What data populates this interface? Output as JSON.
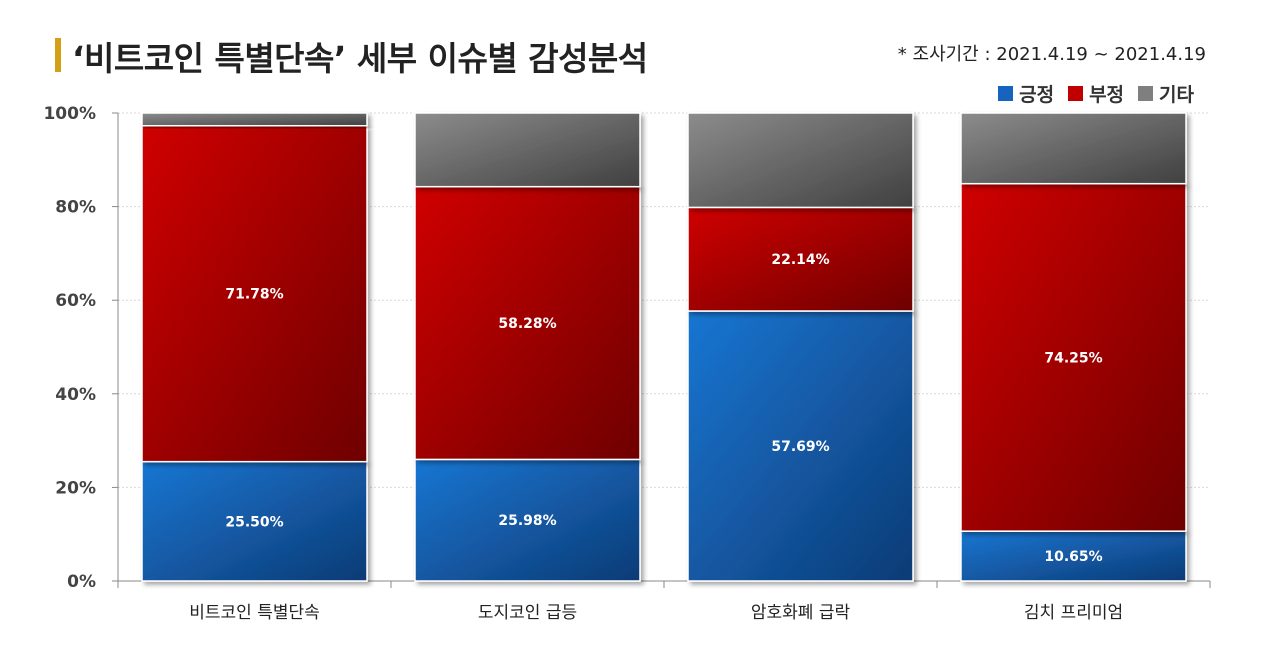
{
  "title": "‘비트코인 특별단속’ 세부 이슈별 감성분석",
  "note": "* 조사기간 : 2021.4.19 ~ 2021.4.19",
  "chart_data": {
    "type": "bar",
    "stacked": true,
    "categories": [
      "비트코인 특별단속",
      "도지코인 급등",
      "암호화폐 급락",
      "김치 프리미엄"
    ],
    "series": [
      {
        "name": "긍정",
        "color": "#1565C0",
        "values": [
          25.5,
          25.98,
          57.69,
          10.65
        ],
        "labels": [
          "25.50%",
          "25.98%",
          "57.69%",
          "10.65%"
        ]
      },
      {
        "name": "부정",
        "color": "#C00000",
        "values": [
          71.78,
          58.28,
          22.14,
          74.25
        ],
        "labels": [
          "71.78%",
          "58.28%",
          "22.14%",
          "74.25%"
        ]
      },
      {
        "name": "기타",
        "color": "#7F7F7F",
        "values": [
          2.72,
          15.74,
          20.17,
          15.1
        ],
        "labels": [
          "",
          "",
          "",
          ""
        ]
      }
    ],
    "yticks": [
      "0%",
      "20%",
      "40%",
      "60%",
      "80%",
      "100%"
    ],
    "ylim": [
      0,
      100
    ],
    "grid": true,
    "legend": "top-right"
  }
}
